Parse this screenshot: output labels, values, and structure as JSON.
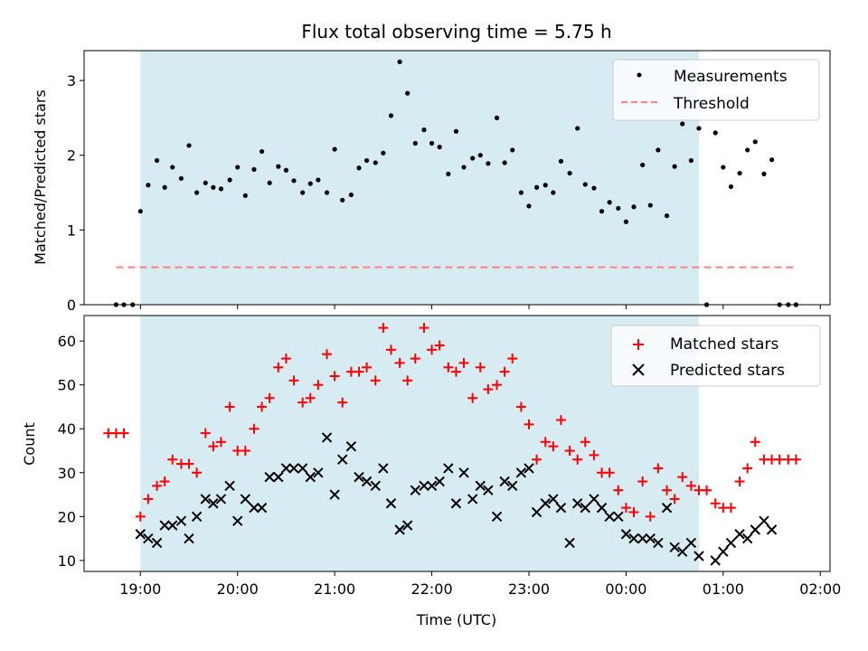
{
  "chart_data": [
    {
      "type": "scatter",
      "title": "Flux total observing time = 5.75 h",
      "ylabel": "Matched/Predicted stars",
      "ylim": [
        0,
        3.4
      ],
      "yticks": [
        0,
        1,
        2,
        3
      ],
      "xlim": [
        18.42,
        26.1
      ],
      "shaded_span": [
        19.0,
        24.75
      ],
      "shade_color": "#add8e6",
      "legend_position": "upper right",
      "series": [
        {
          "name": "Measurements",
          "marker": "dot",
          "color": "#000000",
          "x": [
            18.75,
            18.83,
            18.92,
            19.0,
            19.08,
            19.17,
            19.25,
            19.33,
            19.42,
            19.5,
            19.58,
            19.67,
            19.75,
            19.83,
            19.92,
            20.0,
            20.08,
            20.17,
            20.25,
            20.33,
            20.42,
            20.5,
            20.58,
            20.67,
            20.75,
            20.83,
            20.92,
            21.0,
            21.08,
            21.17,
            21.25,
            21.33,
            21.42,
            21.5,
            21.58,
            21.67,
            21.75,
            21.83,
            21.92,
            22.0,
            22.08,
            22.17,
            22.25,
            22.33,
            22.42,
            22.5,
            22.58,
            22.67,
            22.75,
            22.83,
            22.92,
            23.0,
            23.08,
            23.17,
            23.25,
            23.33,
            23.42,
            23.5,
            23.58,
            23.67,
            23.75,
            23.83,
            23.92,
            24.0,
            24.08,
            24.17,
            24.25,
            24.33,
            24.42,
            24.5,
            24.58,
            24.67,
            24.75,
            24.83,
            24.92,
            25.0,
            25.08,
            25.17,
            25.25,
            25.33,
            25.42,
            25.5,
            25.58,
            25.67,
            25.75
          ],
          "y": [
            0,
            0,
            0,
            1.25,
            1.6,
            1.93,
            1.57,
            1.84,
            1.69,
            2.13,
            1.5,
            1.63,
            1.57,
            1.55,
            1.67,
            1.84,
            1.46,
            1.81,
            2.05,
            1.63,
            1.85,
            1.8,
            1.66,
            1.5,
            1.62,
            1.67,
            1.5,
            2.08,
            1.4,
            1.47,
            1.83,
            1.93,
            1.9,
            2.03,
            2.53,
            3.25,
            2.83,
            2.16,
            2.34,
            2.16,
            2.11,
            1.75,
            2.32,
            1.84,
            1.96,
            2.0,
            1.89,
            2.5,
            1.9,
            2.07,
            1.5,
            1.32,
            1.57,
            1.6,
            1.5,
            1.92,
            1.76,
            2.36,
            1.61,
            1.56,
            1.25,
            1.37,
            1.29,
            1.11,
            1.31,
            1.87,
            1.33,
            2.07,
            1.19,
            1.85,
            2.42,
            1.93,
            2.36,
            0,
            2.3,
            1.84,
            1.58,
            1.76,
            2.07,
            2.18,
            1.75,
            1.94,
            0,
            0,
            0
          ]
        },
        {
          "name": "Threshold",
          "marker": "dashed-line",
          "color": "#ff7f7f",
          "x": [
            18.75,
            25.75
          ],
          "y": [
            0.5,
            0.5
          ]
        }
      ]
    },
    {
      "type": "scatter",
      "title": "",
      "xlabel": "Time (UTC)",
      "ylabel": "Count",
      "ylim": [
        7.5,
        65.8
      ],
      "yticks": [
        10,
        20,
        30,
        40,
        50,
        60
      ],
      "xlim": [
        18.42,
        26.1
      ],
      "xticks": [
        19,
        20,
        21,
        22,
        23,
        24,
        25,
        26
      ],
      "xtick_labels": [
        "19:00",
        "20:00",
        "21:00",
        "22:00",
        "23:00",
        "00:00",
        "01:00",
        "02:00"
      ],
      "shaded_span": [
        19.0,
        24.75
      ],
      "shade_color": "#add8e6",
      "legend_position": "upper right",
      "series": [
        {
          "name": "Matched stars",
          "marker": "plus",
          "color": "#ff0000",
          "x": [
            18.67,
            18.75,
            18.83,
            19.0,
            19.08,
            19.17,
            19.25,
            19.33,
            19.42,
            19.5,
            19.58,
            19.67,
            19.75,
            19.83,
            19.92,
            20.0,
            20.08,
            20.17,
            20.25,
            20.33,
            20.42,
            20.5,
            20.58,
            20.67,
            20.75,
            20.83,
            20.92,
            21.0,
            21.08,
            21.17,
            21.25,
            21.33,
            21.42,
            21.5,
            21.58,
            21.67,
            21.75,
            21.83,
            21.92,
            22.0,
            22.08,
            22.17,
            22.25,
            22.33,
            22.42,
            22.5,
            22.58,
            22.67,
            22.75,
            22.83,
            22.92,
            23.0,
            23.08,
            23.17,
            23.25,
            23.33,
            23.42,
            23.5,
            23.58,
            23.67,
            23.75,
            23.83,
            23.92,
            24.0,
            24.08,
            24.17,
            24.25,
            24.33,
            24.42,
            24.5,
            24.58,
            24.67,
            24.75,
            24.83,
            24.92,
            25.0,
            25.08,
            25.17,
            25.25,
            25.33,
            25.42,
            25.5,
            25.58,
            25.67,
            25.75
          ],
          "y": [
            39,
            39,
            39,
            20,
            24,
            27,
            28,
            33,
            32,
            32,
            30,
            39,
            36,
            37,
            45,
            35,
            35,
            40,
            45,
            47,
            54,
            56,
            51,
            46,
            47,
            50,
            57,
            52,
            46,
            53,
            53,
            54,
            51,
            63,
            58,
            55,
            51,
            56,
            63,
            58,
            59,
            54,
            53,
            55,
            47,
            54,
            49,
            50,
            53,
            56,
            45,
            41,
            33,
            37,
            36,
            42,
            35,
            33,
            37,
            34,
            30,
            30,
            26,
            22,
            21,
            28,
            20,
            31,
            26,
            24,
            29,
            27,
            26,
            26,
            23,
            22,
            22,
            28,
            31,
            37,
            33,
            33,
            33,
            33,
            33
          ]
        },
        {
          "name": "Predicted stars",
          "marker": "x",
          "color": "#000000",
          "x": [
            19.0,
            19.08,
            19.17,
            19.25,
            19.33,
            19.42,
            19.5,
            19.58,
            19.67,
            19.75,
            19.83,
            19.92,
            20.0,
            20.08,
            20.17,
            20.25,
            20.33,
            20.42,
            20.5,
            20.58,
            20.67,
            20.75,
            20.83,
            20.92,
            21.0,
            21.08,
            21.17,
            21.25,
            21.33,
            21.42,
            21.5,
            21.58,
            21.67,
            21.75,
            21.83,
            21.92,
            22.0,
            22.08,
            22.17,
            22.25,
            22.33,
            22.42,
            22.5,
            22.58,
            22.67,
            22.75,
            22.83,
            22.92,
            23.0,
            23.08,
            23.17,
            23.25,
            23.33,
            23.42,
            23.5,
            23.58,
            23.67,
            23.75,
            23.83,
            23.92,
            24.0,
            24.08,
            24.17,
            24.25,
            24.33,
            24.42,
            24.5,
            24.58,
            24.67,
            24.75,
            24.92,
            25.0,
            25.08,
            25.17,
            25.25,
            25.33,
            25.42,
            25.5
          ],
          "y": [
            16,
            15,
            14,
            18,
            18,
            19,
            15,
            20,
            24,
            23,
            24,
            27,
            19,
            24,
            22,
            22,
            29,
            29,
            31,
            31,
            31,
            29,
            30,
            38,
            25,
            33,
            36,
            29,
            28,
            27,
            31,
            23,
            17,
            18,
            26,
            27,
            27,
            28,
            31,
            23,
            30,
            24,
            27,
            26,
            20,
            28,
            27,
            30,
            31,
            21,
            23,
            24,
            22,
            14,
            23,
            22,
            24,
            22,
            20,
            20,
            16,
            15,
            15,
            15,
            14,
            22,
            13,
            12,
            14,
            11,
            10,
            12,
            14,
            16,
            15,
            17,
            19,
            17
          ]
        }
      ]
    }
  ]
}
